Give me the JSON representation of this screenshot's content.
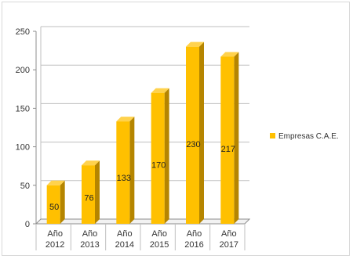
{
  "chart_data": {
    "type": "bar",
    "title": "",
    "xlabel": "",
    "ylabel": "",
    "categories": [
      [
        "Año",
        "2012"
      ],
      [
        "Año",
        "2013"
      ],
      [
        "Año",
        "2014"
      ],
      [
        "Año",
        "2015"
      ],
      [
        "Año",
        "2016"
      ],
      [
        "Año",
        "2017"
      ]
    ],
    "series": [
      {
        "name": "Empresas C.A.E.",
        "values": [
          50,
          76,
          133,
          170,
          230,
          217
        ]
      }
    ],
    "ylim": [
      0,
      250
    ],
    "yticks": [
      0,
      50,
      100,
      150,
      200,
      250
    ],
    "grid": true,
    "legend_position": "right",
    "colors": {
      "bar_front": "#FFC000",
      "bar_side": "#B58500",
      "bar_top": "#FFD24D",
      "grid": "#bfbfbf"
    }
  }
}
